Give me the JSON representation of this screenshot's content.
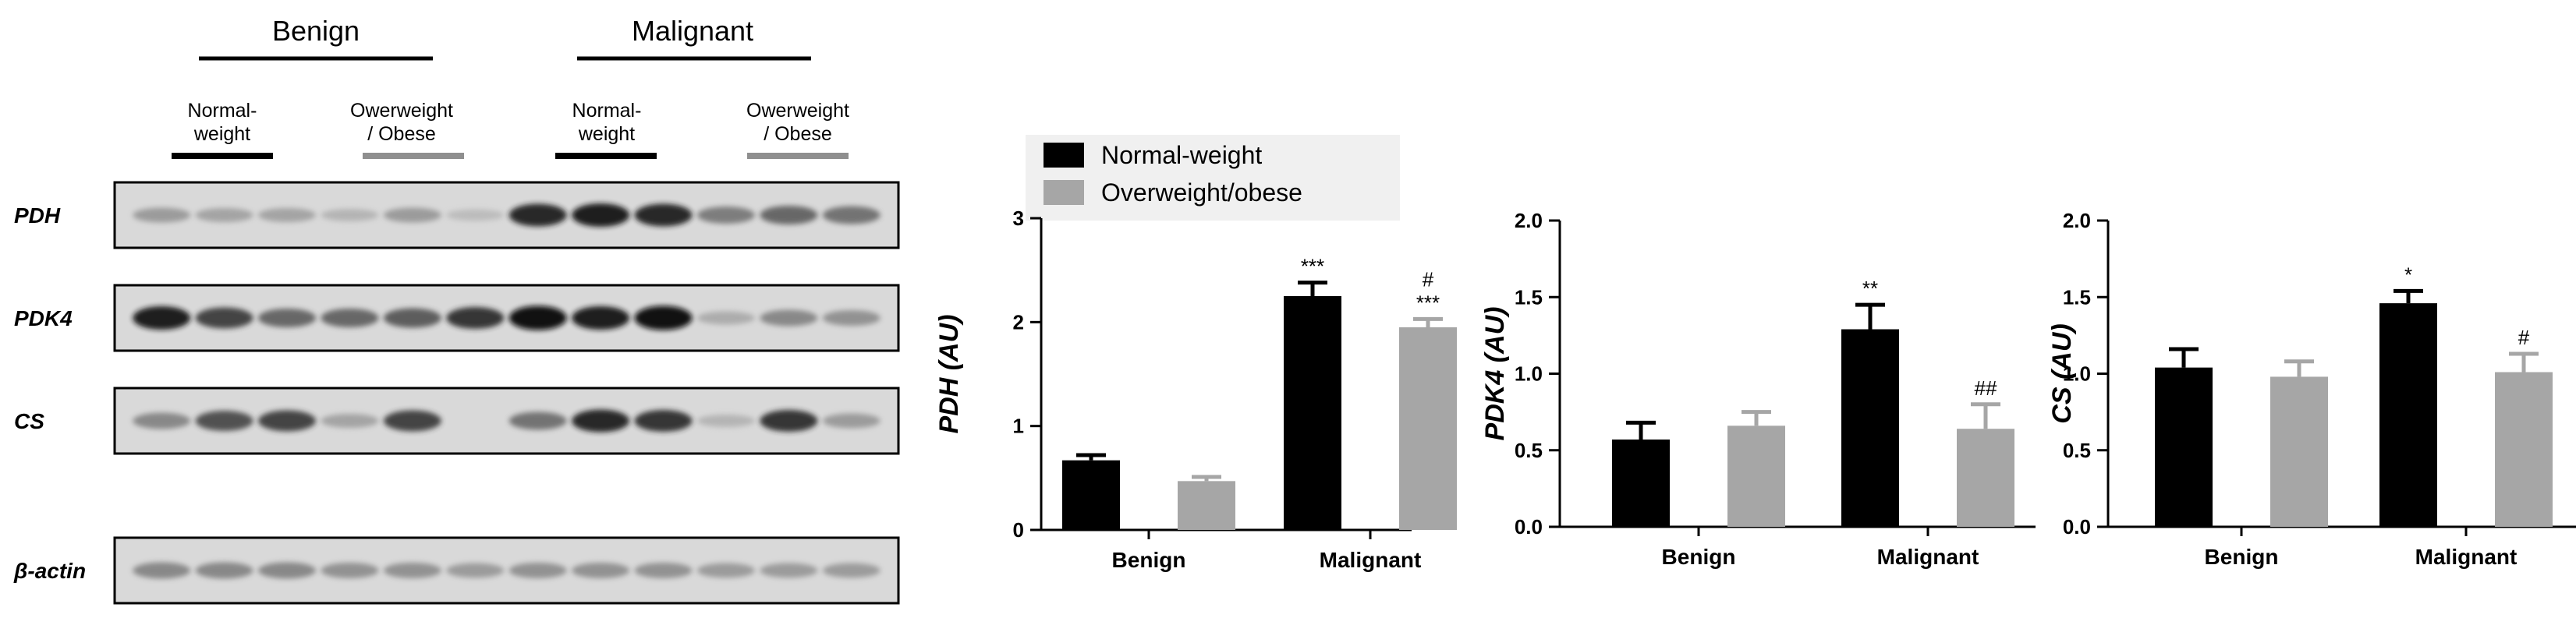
{
  "colors": {
    "normal_weight": "#000000",
    "overweight_obese": "#a6a6a6",
    "blot_background": "#d9d9d9"
  },
  "western_blot": {
    "groups": [
      {
        "label": "Benign",
        "subgroups": [
          {
            "label_lines": [
              "Normal-",
              "weight"
            ],
            "bar_color": "#000000"
          },
          {
            "label_lines": [
              "Owerweight",
              "/ Obese"
            ],
            "bar_color": "#8f8f8f"
          }
        ]
      },
      {
        "label": "Malignant",
        "subgroups": [
          {
            "label_lines": [
              "Normal-",
              "weight"
            ],
            "bar_color": "#000000"
          },
          {
            "label_lines": [
              "Owerweight",
              "/ Obese"
            ],
            "bar_color": "#8f8f8f"
          }
        ]
      }
    ],
    "rows": [
      {
        "label": "PDH",
        "intensities": [
          0.35,
          0.3,
          0.3,
          0.2,
          0.35,
          0.15,
          0.85,
          0.9,
          0.85,
          0.5,
          0.6,
          0.55
        ]
      },
      {
        "label": "PDK4",
        "intensities": [
          0.9,
          0.75,
          0.6,
          0.6,
          0.65,
          0.8,
          0.95,
          0.9,
          0.95,
          0.25,
          0.45,
          0.4
        ]
      },
      {
        "label": "CS",
        "intensities": [
          0.45,
          0.7,
          0.75,
          0.3,
          0.75,
          0.0,
          0.55,
          0.85,
          0.8,
          0.2,
          0.8,
          0.35
        ]
      },
      {
        "label": "β-actin",
        "intensities": [
          0.45,
          0.45,
          0.45,
          0.4,
          0.4,
          0.35,
          0.4,
          0.4,
          0.4,
          0.35,
          0.35,
          0.35
        ]
      }
    ]
  },
  "chart_data": [
    {
      "type": "bar",
      "title": "",
      "ylabel": "PDH (AU)",
      "xlabel": "",
      "categories": [
        "Benign",
        "Malignant"
      ],
      "ylim": [
        0,
        3
      ],
      "yticks": [
        "0",
        "1",
        "2",
        "3"
      ],
      "series": [
        {
          "name": "Normal-weight",
          "values": [
            0.67,
            2.25
          ],
          "errors": [
            0.05,
            0.13
          ]
        },
        {
          "name": "Overweight/obese",
          "values": [
            0.47,
            1.95
          ],
          "errors": [
            0.04,
            0.08
          ]
        }
      ],
      "annotations": [
        {
          "category": "Malignant",
          "series": "Normal-weight",
          "lines": [
            "***"
          ]
        },
        {
          "category": "Malignant",
          "series": "Overweight/obese",
          "lines": [
            "#",
            "***"
          ]
        }
      ],
      "legend": {
        "position": "top",
        "entries": [
          "Normal-weight",
          "Overweight/obese"
        ]
      }
    },
    {
      "type": "bar",
      "title": "",
      "ylabel": "PDK4 (AU)",
      "xlabel": "",
      "categories": [
        "Benign",
        "Malignant"
      ],
      "ylim": [
        0,
        2
      ],
      "yticks": [
        "0.0",
        "0.5",
        "1.0",
        "1.5",
        "2.0"
      ],
      "series": [
        {
          "name": "Normal-weight",
          "values": [
            0.57,
            1.29
          ],
          "errors": [
            0.11,
            0.16
          ]
        },
        {
          "name": "Overweight/obese",
          "values": [
            0.66,
            0.64
          ],
          "errors": [
            0.09,
            0.16
          ]
        }
      ],
      "annotations": [
        {
          "category": "Malignant",
          "series": "Normal-weight",
          "lines": [
            "**"
          ]
        },
        {
          "category": "Malignant",
          "series": "Overweight/obese",
          "lines": [
            "##"
          ]
        }
      ]
    },
    {
      "type": "bar",
      "title": "",
      "ylabel": "CS (AU)",
      "xlabel": "",
      "categories": [
        "Benign",
        "Malignant"
      ],
      "ylim": [
        0,
        2
      ],
      "yticks": [
        "0.0",
        "0.5",
        "1.0",
        "1.5",
        "2.0"
      ],
      "series": [
        {
          "name": "Normal-weight",
          "values": [
            1.04,
            1.46
          ],
          "errors": [
            0.12,
            0.08
          ]
        },
        {
          "name": "Overweight/obese",
          "values": [
            0.98,
            1.01
          ],
          "errors": [
            0.1,
            0.12
          ]
        }
      ],
      "annotations": [
        {
          "category": "Malignant",
          "series": "Normal-weight",
          "lines": [
            "*"
          ]
        },
        {
          "category": "Malignant",
          "series": "Overweight/obese",
          "lines": [
            "#"
          ]
        }
      ]
    }
  ]
}
